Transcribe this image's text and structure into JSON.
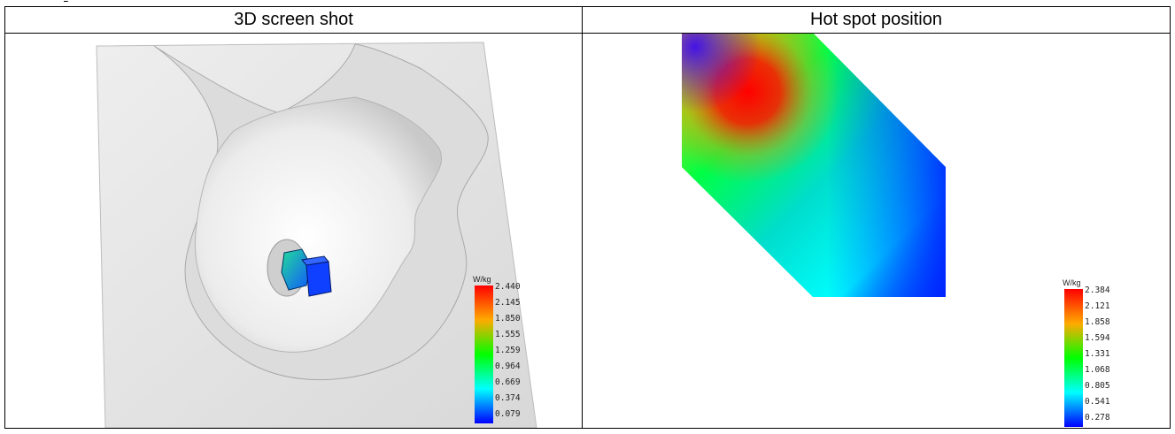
{
  "table": {
    "headers": [
      "3D screen shot",
      "Hot spot position"
    ]
  },
  "left_legend": {
    "unit": "W/kg",
    "ticks": [
      "2.440",
      "2.145",
      "1.850",
      "1.555",
      "1.259",
      "0.964",
      "0.669",
      "0.374",
      "0.079"
    ]
  },
  "right_legend": {
    "unit": "W/kg",
    "ticks": [
      "2.384",
      "2.121",
      "1.858",
      "1.594",
      "1.331",
      "1.068",
      "0.805",
      "0.541",
      "0.278"
    ]
  },
  "colors": {
    "scale_top": "#ff0000",
    "scale_high": "#ffaa00",
    "scale_mid": "#00ff00",
    "scale_low": "#00ffff",
    "scale_bottom": "#0000ff",
    "phantom": "#e8e8e8"
  }
}
